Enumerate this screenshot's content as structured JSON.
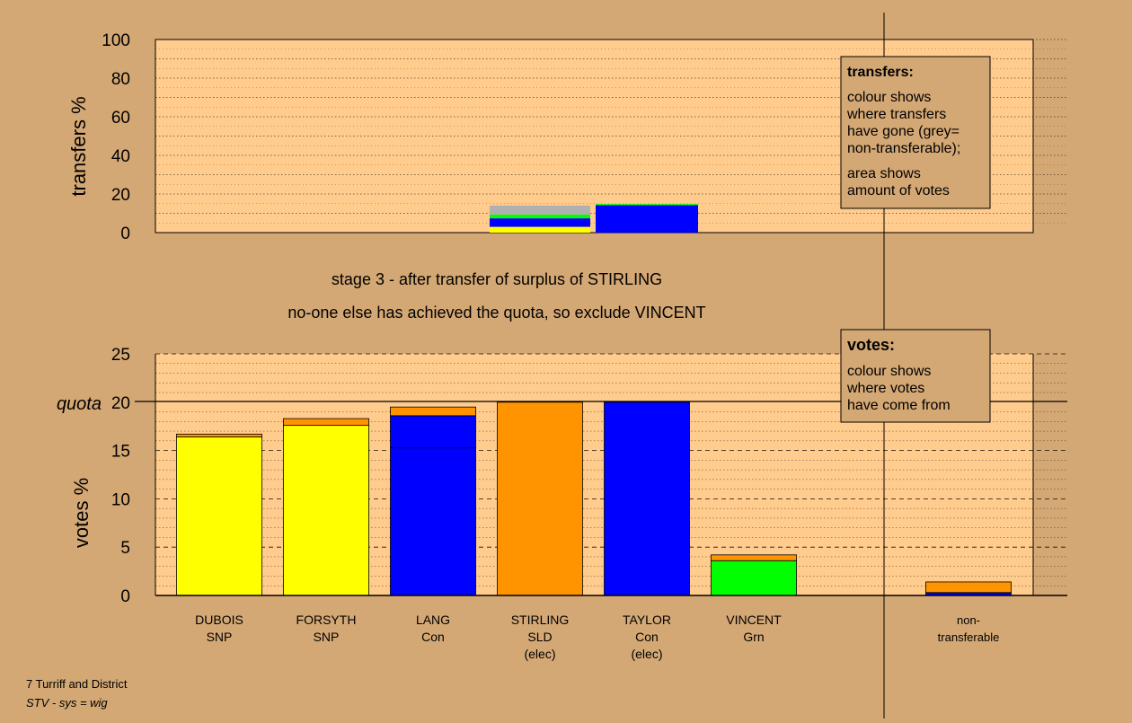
{
  "chart_data": [
    {
      "type": "bar",
      "stacked": true,
      "ylabel": "transfers %",
      "ylim": [
        0,
        100
      ],
      "yticks": [
        0,
        20,
        40,
        60,
        80,
        100
      ],
      "grid": "dotted",
      "bars": [
        {
          "candidate": "STIRLING",
          "segments": [
            {
              "color": "#ffff00",
              "value": 3.0
            },
            {
              "color": "#0000ff",
              "value": 4.4
            },
            {
              "color": "#00ff00",
              "value": 2.0
            },
            {
              "color": "#b0b0b0",
              "value": 4.6
            }
          ]
        },
        {
          "candidate": "TAYLOR",
          "segments": [
            {
              "color": "#0000ff",
              "value": 14.2
            },
            {
              "color": "#00ff00",
              "value": 0.6
            }
          ]
        }
      ],
      "legend": {
        "title": "transfers:",
        "lines1": [
          "colour shows",
          "where transfers",
          "have gone (grey=",
          "non-transferable);"
        ],
        "lines2": [
          "area shows",
          "amount of votes"
        ]
      }
    },
    {
      "type": "bar",
      "stacked": true,
      "ylabel": "votes %",
      "ylim": [
        0,
        25
      ],
      "yticks": [
        0,
        5,
        10,
        15,
        20,
        25
      ],
      "quota": 20,
      "quota_label": "quota",
      "grid": "dashed",
      "categories": [
        {
          "name": "DUBOIS",
          "line2": "SNP",
          "line3": ""
        },
        {
          "name": "FORSYTH",
          "line2": "SNP",
          "line3": ""
        },
        {
          "name": "LANG",
          "line2": "Con",
          "line3": ""
        },
        {
          "name": "STIRLING",
          "line2": "SLD",
          "line3": "(elec)"
        },
        {
          "name": "TAYLOR",
          "line2": "Con",
          "line3": "(elec)"
        },
        {
          "name": "VINCENT",
          "line2": "Grn",
          "line3": ""
        },
        {
          "name": "non-",
          "line2": "transferable",
          "line3": ""
        }
      ],
      "bars": [
        {
          "segments": [
            {
              "color": "#ffff00",
              "value": 16.4
            },
            {
              "color": "#ff9300",
              "value": 0.3
            }
          ]
        },
        {
          "segments": [
            {
              "color": "#ffff00",
              "value": 17.6
            },
            {
              "color": "#ff9300",
              "value": 0.7
            }
          ]
        },
        {
          "segments": [
            {
              "color": "#0000ff",
              "value": 15.3
            },
            {
              "color": "#0000ff",
              "value": 3.3
            },
            {
              "color": "#ff9300",
              "value": 0.9
            }
          ]
        },
        {
          "segments": [
            {
              "color": "#ff9300",
              "value": 20.0
            }
          ]
        },
        {
          "segments": [
            {
              "color": "#0000ff",
              "value": 20.0
            }
          ]
        },
        {
          "segments": [
            {
              "color": "#00ff00",
              "value": 3.6
            },
            {
              "color": "#ff9300",
              "value": 0.6
            }
          ]
        },
        {
          "segments": [
            {
              "color": "#0000ff",
              "value": 0.3
            },
            {
              "color": "#ff9300",
              "value": 1.1
            }
          ]
        }
      ],
      "legend": {
        "title": "votes:",
        "lines": [
          "colour shows",
          "where votes",
          "have come from"
        ]
      }
    }
  ],
  "stage_title": "stage 3 - after transfer of surplus of STIRLING",
  "stage_subtitle": "no-one else has achieved the quota, so exclude VINCENT",
  "footer": {
    "line1": "7 Turriff and District",
    "line2": "STV - sys = wig"
  },
  "colors": {
    "background": "#d4a874",
    "plot_area": "#ffcc8d"
  }
}
